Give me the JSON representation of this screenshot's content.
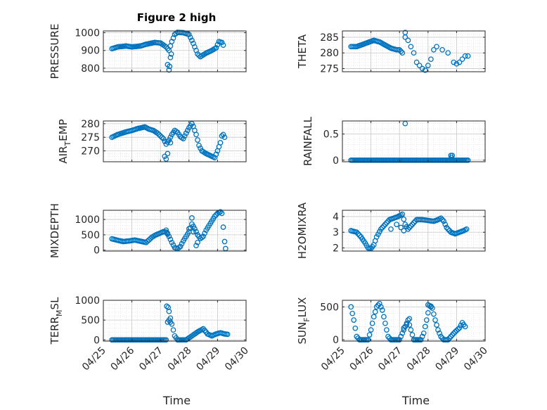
{
  "figure": {
    "title": "Figure 2 high",
    "marker_color": "#0072BD",
    "grid": true
  },
  "chart_data": [
    {
      "type": "scatter",
      "name": "pressure",
      "ylabel": "PRESSURE",
      "xlabel": "",
      "xlim": [
        0,
        5
      ],
      "ylim": [
        780,
        1010
      ],
      "yticks": [
        800,
        900,
        1000
      ],
      "xticks": [
        "04/25",
        "04/26",
        "04/27",
        "04/28",
        "04/29",
        "04/30"
      ],
      "show_xticklabels": false,
      "curve": [
        [
          0.3,
          910
        ],
        [
          0.5,
          920
        ],
        [
          0.8,
          925
        ],
        [
          1.0,
          920
        ],
        [
          1.3,
          925
        ],
        [
          1.5,
          935
        ],
        [
          1.8,
          945
        ],
        [
          2.0,
          942
        ],
        [
          2.2,
          920
        ],
        [
          2.3,
          900
        ],
        [
          2.4,
          950
        ],
        [
          2.5,
          990
        ],
        [
          2.6,
          1002
        ],
        [
          2.8,
          1000
        ],
        [
          2.9,
          995
        ],
        [
          3.0,
          990
        ],
        [
          3.15,
          940
        ],
        [
          3.3,
          880
        ],
        [
          3.4,
          865
        ],
        [
          3.6,
          885
        ],
        [
          3.8,
          900
        ],
        [
          3.95,
          915
        ],
        [
          4.05,
          950
        ],
        [
          4.15,
          945
        ],
        [
          4.2,
          930
        ]
      ],
      "extra": [
        [
          2.25,
          820
        ],
        [
          2.3,
          790
        ],
        [
          2.32,
          810
        ],
        [
          2.35,
          860
        ],
        [
          2.38,
          880
        ]
      ]
    },
    {
      "type": "scatter",
      "name": "theta",
      "ylabel": "THETA",
      "xlabel": "",
      "xlim": [
        0,
        5
      ],
      "ylim": [
        274,
        287
      ],
      "yticks": [
        275,
        280,
        285
      ],
      "xticks": [
        "04/25",
        "04/26",
        "04/27",
        "04/28",
        "04/29",
        "04/30"
      ],
      "show_xticklabels": false,
      "curve": [
        [
          0.3,
          282
        ],
        [
          0.5,
          282
        ],
        [
          0.8,
          283
        ],
        [
          1.1,
          284
        ],
        [
          1.3,
          283.5
        ],
        [
          1.5,
          282.5
        ],
        [
          1.7,
          281.5
        ],
        [
          1.9,
          281
        ],
        [
          2.0,
          281
        ],
        [
          2.05,
          280.5
        ],
        [
          2.1,
          280
        ]
      ],
      "extra": [
        [
          2.2,
          286.5
        ],
        [
          2.2,
          285
        ],
        [
          2.3,
          284
        ],
        [
          2.4,
          282
        ],
        [
          2.5,
          280
        ],
        [
          2.6,
          277
        ],
        [
          2.7,
          276
        ],
        [
          2.8,
          275
        ],
        [
          2.9,
          274.5
        ],
        [
          3.0,
          276
        ],
        [
          3.1,
          278
        ],
        [
          3.2,
          281
        ],
        [
          3.3,
          282
        ],
        [
          3.5,
          281
        ],
        [
          3.7,
          280
        ],
        [
          3.9,
          277
        ],
        [
          4.0,
          276.5
        ],
        [
          4.1,
          277
        ],
        [
          4.2,
          278
        ],
        [
          4.3,
          279
        ],
        [
          4.4,
          279
        ]
      ]
    },
    {
      "type": "scatter",
      "name": "air_temp",
      "ylabel": "AIR_TEMP",
      "ylabel_main": "AIR",
      "ylabel_sub": "T",
      "ylabel_rest": "EMP",
      "xlabel": "",
      "xlim": [
        0,
        5
      ],
      "ylim": [
        266,
        281
      ],
      "yticks": [
        270,
        275,
        280
      ],
      "xticks": [
        "04/25",
        "04/26",
        "04/27",
        "04/28",
        "04/29",
        "04/30"
      ],
      "show_xticklabels": false,
      "curve": [
        [
          0.3,
          275
        ],
        [
          0.5,
          276
        ],
        [
          0.8,
          277
        ],
        [
          1.0,
          277.5
        ],
        [
          1.2,
          278.2
        ],
        [
          1.45,
          278.8
        ],
        [
          1.6,
          278
        ],
        [
          1.75,
          277.5
        ],
        [
          1.9,
          276.5
        ],
        [
          2.0,
          275.5
        ],
        [
          2.1,
          274.5
        ],
        [
          2.2,
          272.5
        ],
        [
          2.3,
          274
        ],
        [
          2.4,
          276
        ],
        [
          2.5,
          277.5
        ],
        [
          2.6,
          276.8
        ],
        [
          2.7,
          275.2
        ],
        [
          2.8,
          274.5
        ],
        [
          2.9,
          276.5
        ],
        [
          3.0,
          278.5
        ],
        [
          3.1,
          280
        ],
        [
          3.15,
          279
        ],
        [
          3.25,
          276
        ],
        [
          3.35,
          272
        ],
        [
          3.45,
          270
        ],
        [
          3.6,
          269
        ],
        [
          3.8,
          268
        ],
        [
          3.9,
          267.5
        ],
        [
          4.0,
          270
        ],
        [
          4.1,
          273
        ],
        [
          4.15,
          275.5
        ],
        [
          4.2,
          276
        ],
        [
          4.25,
          275
        ]
      ],
      "extra": [
        [
          2.15,
          268
        ],
        [
          2.2,
          267
        ],
        [
          2.25,
          269
        ],
        [
          2.35,
          273
        ]
      ]
    },
    {
      "type": "scatter",
      "name": "rainfall",
      "ylabel": "RAINFALL",
      "xlabel": "",
      "xlim": [
        0,
        5
      ],
      "ylim": [
        -0.03,
        0.75
      ],
      "yticks": [
        0,
        0.5
      ],
      "xticks": [
        "04/25",
        "04/26",
        "04/27",
        "04/28",
        "04/29",
        "04/30"
      ],
      "show_xticklabels": false,
      "curve": [
        [
          0.3,
          0
        ],
        [
          4.4,
          0
        ]
      ],
      "extra": [
        [
          2.2,
          0.7
        ],
        [
          3.8,
          0.09
        ],
        [
          3.85,
          0.09
        ],
        [
          3.82,
          0.05
        ]
      ]
    },
    {
      "type": "scatter",
      "name": "mixdepth",
      "ylabel": "MIXDEPTH",
      "xlabel": "",
      "xlim": [
        0,
        5
      ],
      "ylim": [
        -30,
        1300
      ],
      "yticks": [
        0,
        500,
        1000
      ],
      "xticks": [
        "04/25",
        "04/26",
        "04/27",
        "04/28",
        "04/29",
        "04/30"
      ],
      "show_xticklabels": false,
      "curve": [
        [
          0.3,
          370
        ],
        [
          0.5,
          320
        ],
        [
          0.7,
          280
        ],
        [
          0.9,
          300
        ],
        [
          1.1,
          330
        ],
        [
          1.3,
          290
        ],
        [
          1.5,
          250
        ],
        [
          1.7,
          420
        ],
        [
          1.8,
          480
        ],
        [
          1.9,
          520
        ],
        [
          2.0,
          560
        ],
        [
          2.1,
          600
        ],
        [
          2.2,
          590
        ],
        [
          2.3,
          450
        ],
        [
          2.4,
          250
        ],
        [
          2.5,
          80
        ],
        [
          2.6,
          50
        ],
        [
          2.7,
          120
        ],
        [
          2.8,
          300
        ],
        [
          2.9,
          450
        ],
        [
          3.0,
          600
        ],
        [
          3.1,
          850
        ],
        [
          3.2,
          700
        ],
        [
          3.3,
          500
        ],
        [
          3.4,
          380
        ],
        [
          3.5,
          450
        ],
        [
          3.6,
          650
        ],
        [
          3.7,
          800
        ],
        [
          3.8,
          950
        ],
        [
          3.9,
          1100
        ],
        [
          4.0,
          1200
        ],
        [
          4.1,
          1250
        ],
        [
          4.15,
          1200
        ]
      ],
      "extra": [
        [
          2.2,
          650
        ],
        [
          2.25,
          550
        ],
        [
          3.1,
          1050
        ],
        [
          3.0,
          700
        ],
        [
          3.15,
          600
        ],
        [
          3.25,
          150
        ],
        [
          3.3,
          250
        ],
        [
          4.2,
          750
        ],
        [
          4.25,
          280
        ],
        [
          4.28,
          50
        ]
      ]
    },
    {
      "type": "scatter",
      "name": "h2omixra",
      "ylabel": "H2OMIXRA",
      "xlabel": "",
      "xlim": [
        0,
        5
      ],
      "ylim": [
        1.8,
        4.4
      ],
      "yticks": [
        2,
        3,
        4
      ],
      "xticks": [
        "04/25",
        "04/26",
        "04/27",
        "04/28",
        "04/29",
        "04/30"
      ],
      "show_xticklabels": false,
      "curve": [
        [
          0.3,
          3.1
        ],
        [
          0.5,
          3.0
        ],
        [
          0.65,
          2.7
        ],
        [
          0.8,
          2.3
        ],
        [
          0.9,
          2.0
        ],
        [
          1.0,
          1.95
        ],
        [
          1.1,
          2.2
        ],
        [
          1.2,
          2.7
        ],
        [
          1.35,
          3.2
        ],
        [
          1.5,
          3.5
        ],
        [
          1.65,
          3.8
        ],
        [
          1.8,
          3.9
        ],
        [
          1.95,
          4.0
        ],
        [
          2.1,
          4.15
        ],
        [
          2.2,
          3.5
        ],
        [
          2.3,
          3.2
        ],
        [
          2.45,
          3.5
        ],
        [
          2.6,
          3.8
        ],
        [
          2.8,
          3.8
        ],
        [
          3.0,
          3.75
        ],
        [
          3.2,
          3.7
        ],
        [
          3.35,
          3.8
        ],
        [
          3.45,
          3.9
        ],
        [
          3.55,
          3.7
        ],
        [
          3.65,
          3.3
        ],
        [
          3.8,
          3.0
        ],
        [
          3.95,
          2.9
        ],
        [
          4.1,
          3.0
        ],
        [
          4.25,
          3.1
        ],
        [
          4.35,
          3.2
        ]
      ],
      "extra": [
        [
          1.7,
          3.2
        ],
        [
          1.9,
          3.5
        ],
        [
          2.05,
          3.3
        ],
        [
          2.15,
          3.1
        ]
      ]
    },
    {
      "type": "scatter",
      "name": "terr_msl",
      "ylabel": "TERR_MSL",
      "ylabel_main": "TERR",
      "ylabel_sub": "M",
      "ylabel_rest": "SL",
      "xlabel": "Time",
      "xlim": [
        0,
        5
      ],
      "ylim": [
        -30,
        1000
      ],
      "yticks": [
        0,
        500,
        1000
      ],
      "xticks": [
        "04/25",
        "04/26",
        "04/27",
        "04/28",
        "04/29",
        "04/30"
      ],
      "show_xticklabels": true,
      "curve": [
        [
          0.3,
          0
        ],
        [
          2.2,
          0
        ],
        [
          2.25,
          450
        ],
        [
          2.3,
          500
        ],
        [
          2.4,
          400
        ],
        [
          2.5,
          100
        ],
        [
          2.6,
          0
        ],
        [
          2.9,
          0
        ],
        [
          3.1,
          100
        ],
        [
          3.3,
          200
        ],
        [
          3.5,
          280
        ],
        [
          3.65,
          150
        ],
        [
          3.8,
          100
        ],
        [
          3.95,
          150
        ],
        [
          4.1,
          180
        ],
        [
          4.25,
          150
        ],
        [
          4.35,
          140
        ]
      ],
      "extra": [
        [
          2.22,
          850
        ],
        [
          2.27,
          820
        ],
        [
          2.3,
          720
        ],
        [
          2.35,
          550
        ]
      ]
    },
    {
      "type": "scatter",
      "name": "sun_flux",
      "ylabel": "SUN_FLUX",
      "ylabel_main": "SUN",
      "ylabel_sub": "F",
      "ylabel_rest": "LUX",
      "xlabel": "Time",
      "xlim": [
        0,
        5
      ],
      "ylim": [
        -20,
        600
      ],
      "yticks": [
        0,
        500
      ],
      "xticks": [
        "04/25",
        "04/26",
        "04/27",
        "04/28",
        "04/29",
        "04/30"
      ],
      "show_xticklabels": true,
      "curve": [
        [
          0.3,
          500
        ],
        [
          0.4,
          300
        ],
        [
          0.5,
          50
        ],
        [
          0.6,
          0
        ],
        [
          0.9,
          0
        ],
        [
          1.0,
          150
        ],
        [
          1.1,
          350
        ],
        [
          1.2,
          500
        ],
        [
          1.3,
          550
        ],
        [
          1.4,
          450
        ],
        [
          1.5,
          250
        ],
        [
          1.6,
          50
        ],
        [
          1.7,
          0
        ],
        [
          2.0,
          0
        ],
        [
          2.1,
          100
        ],
        [
          2.2,
          200
        ],
        [
          2.3,
          300
        ],
        [
          2.4,
          150
        ],
        [
          2.5,
          0
        ],
        [
          2.75,
          0
        ],
        [
          2.85,
          100
        ],
        [
          2.95,
          300
        ],
        [
          3.05,
          520
        ],
        [
          3.15,
          480
        ],
        [
          3.25,
          300
        ],
        [
          3.35,
          150
        ],
        [
          3.45,
          50
        ],
        [
          3.55,
          0
        ],
        [
          3.7,
          0
        ],
        [
          3.8,
          50
        ],
        [
          3.95,
          120
        ],
        [
          4.1,
          180
        ],
        [
          4.2,
          260
        ],
        [
          4.3,
          200
        ]
      ],
      "extra": [
        [
          2.15,
          180
        ],
        [
          2.25,
          230
        ],
        [
          2.35,
          320
        ],
        [
          3.0,
          530
        ],
        [
          3.1,
          510
        ]
      ]
    }
  ]
}
